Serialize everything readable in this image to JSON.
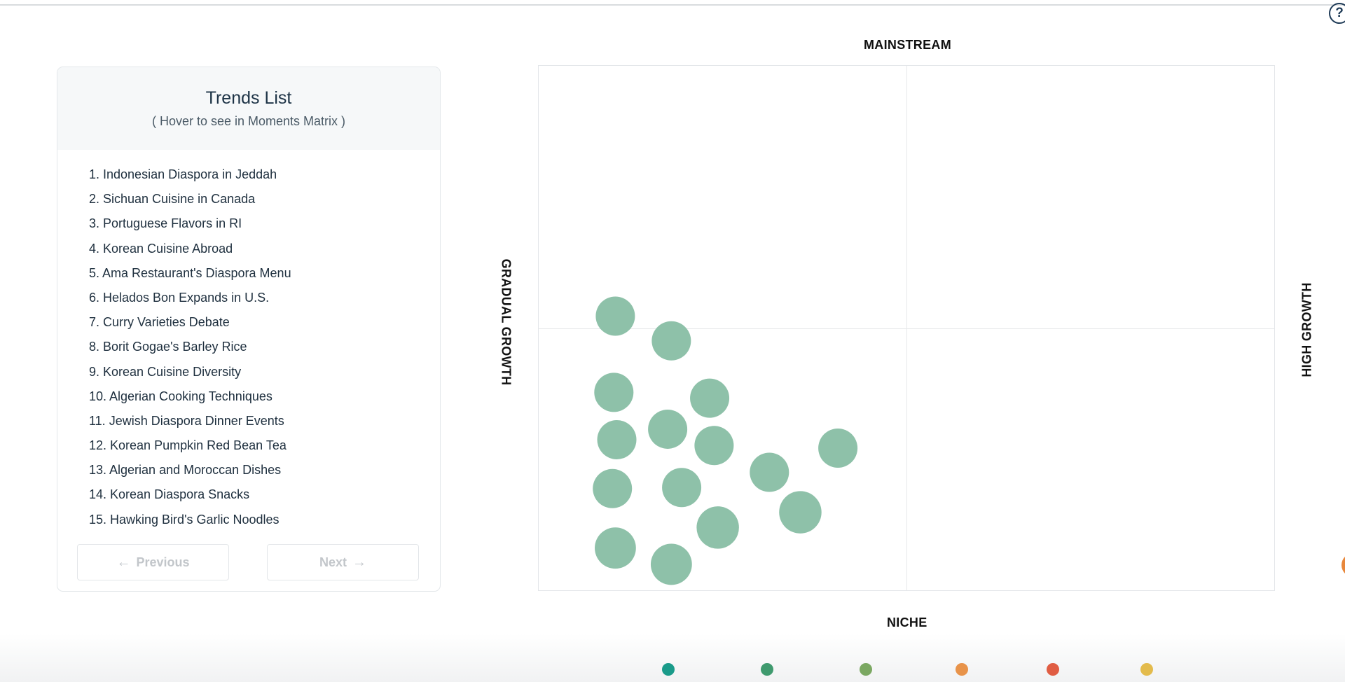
{
  "help": {
    "glyph": "?"
  },
  "trends_panel": {
    "title": "Trends List",
    "subtitle": "( Hover to see in Moments Matrix )",
    "items": [
      "1. Indonesian Diaspora in Jeddah",
      "2. Sichuan Cuisine in Canada",
      "3. Portuguese Flavors in RI",
      "4. Korean Cuisine Abroad",
      "5. Ama Restaurant's Diaspora Menu",
      "6. Helados Bon Expands in U.S.",
      "7. Curry Varieties Debate",
      "8. Borit Gogae's Barley Rice",
      "9. Korean Cuisine Diversity",
      "10. Algerian Cooking Techniques",
      "11. Jewish Diaspora Dinner Events",
      "12. Korean Pumpkin Red Bean Tea",
      "13. Algerian and Moroccan Dishes",
      "14. Korean Diaspora Snacks",
      "15. Hawking Bird's Garlic Noodles"
    ],
    "previous_label": "Previous",
    "next_label": "Next",
    "previous_arrow": "←",
    "next_arrow": "→"
  },
  "matrix": {
    "top_label": "MAINSTREAM",
    "bottom_label": "NICHE",
    "left_label": "GRADUAL GROWTH",
    "right_label": "HIGH GROWTH"
  },
  "chart_data": {
    "type": "scatter",
    "title": "",
    "xlim": [
      0,
      100
    ],
    "ylim": [
      0,
      100
    ],
    "grid": "quadrant dividers at x=50 and y=50",
    "bubble_color": "#8ec1a9",
    "points": [
      {
        "x": 10.4,
        "y": 52.4,
        "size": 1.0
      },
      {
        "x": 18.0,
        "y": 47.7,
        "size": 1.0
      },
      {
        "x": 10.2,
        "y": 37.9,
        "size": 1.0
      },
      {
        "x": 23.2,
        "y": 36.8,
        "size": 1.0
      },
      {
        "x": 17.5,
        "y": 30.9,
        "size": 1.0
      },
      {
        "x": 10.6,
        "y": 28.9,
        "size": 1.0
      },
      {
        "x": 23.8,
        "y": 27.8,
        "size": 1.0
      },
      {
        "x": 40.6,
        "y": 27.3,
        "size": 1.0
      },
      {
        "x": 31.3,
        "y": 22.7,
        "size": 1.0
      },
      {
        "x": 10.0,
        "y": 19.6,
        "size": 1.0
      },
      {
        "x": 19.4,
        "y": 19.8,
        "size": 1.0
      },
      {
        "x": 35.5,
        "y": 15.1,
        "size": 1.08
      },
      {
        "x": 24.3,
        "y": 12.2,
        "size": 1.08
      },
      {
        "x": 10.4,
        "y": 8.3,
        "size": 1.05
      },
      {
        "x": 18.0,
        "y": 5.2,
        "size": 1.05
      }
    ]
  },
  "legend": {
    "colors": [
      "#1a9b8a",
      "#3f9a6e",
      "#7ba862",
      "#e8934a",
      "#e05d43",
      "#e3bb4c"
    ]
  }
}
